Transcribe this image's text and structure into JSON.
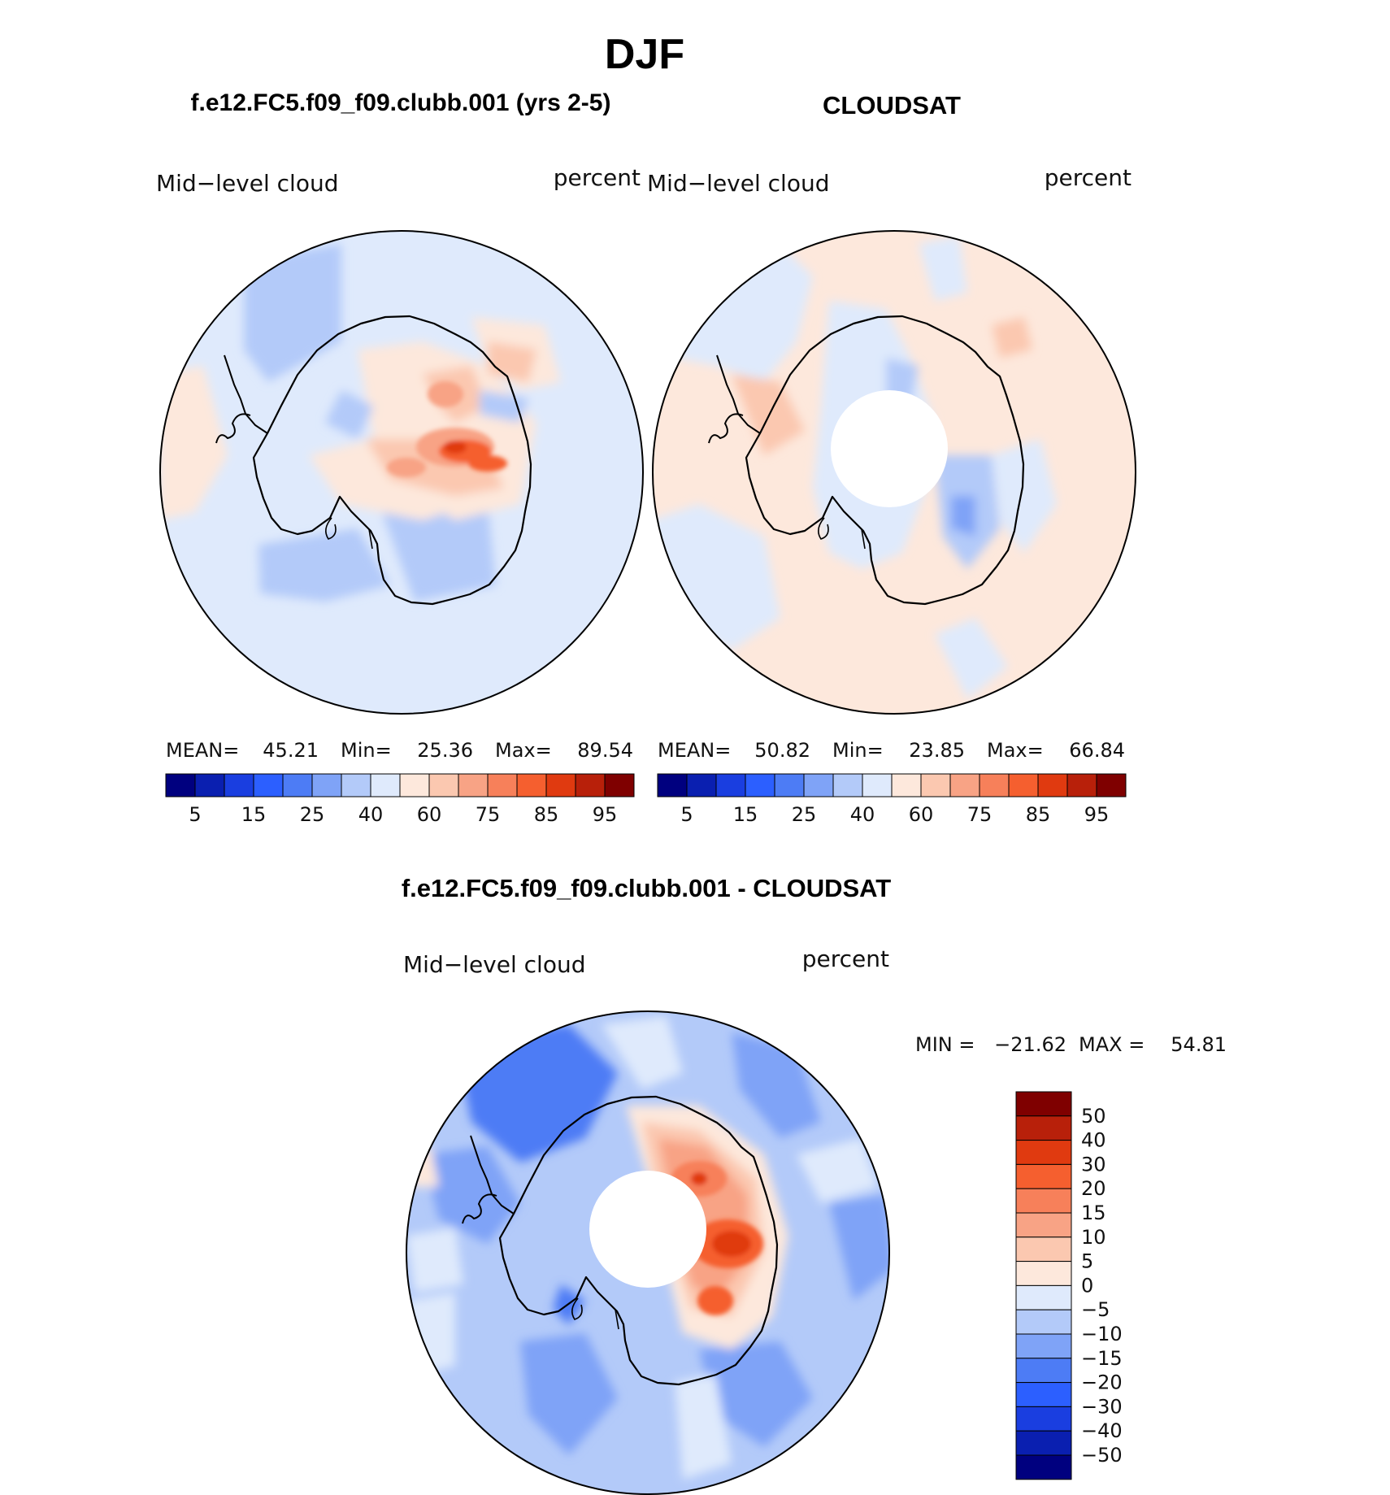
{
  "figure": {
    "season": "DJF",
    "panels": [
      {
        "id": "model",
        "case_title": "f.e12.FC5.f09_f09.clubb.001 (yrs 2-5)",
        "variable": "Mid−level cloud",
        "units": "percent",
        "stats": {
          "mean_label": "MEAN=",
          "mean": "45.21",
          "min_label": "Min=",
          "min": "25.36",
          "max_label": "Max=",
          "max": "89.54"
        },
        "field": {
          "background": "light-blue",
          "south_pole_missing": false
        }
      },
      {
        "id": "obs",
        "case_title": "CLOUDSAT",
        "variable": "Mid−level cloud",
        "units": "percent",
        "stats": {
          "mean_label": "MEAN=",
          "mean": "50.82",
          "min_label": "Min=",
          "min": "23.85",
          "max_label": "Max=",
          "max": "66.84"
        },
        "field": {
          "background": "light-orange",
          "south_pole_missing": true
        }
      }
    ],
    "abs_colorbar": {
      "colors": [
        "#00007f",
        "#0a1fb0",
        "#1a3ee0",
        "#2c5fff",
        "#4d7cf5",
        "#7fa3f7",
        "#b3caf9",
        "#dfeafc",
        "#fde8dc",
        "#fbc8b0",
        "#f8a385",
        "#f7805a",
        "#f55f2f",
        "#e03a10",
        "#b8200a",
        "#7f0000"
      ],
      "labels": [
        "5",
        "15",
        "25",
        "40",
        "60",
        "75",
        "85",
        "95"
      ]
    },
    "diff": {
      "case_title": "f.e12.FC5.f09_f09.clubb.001 - CLOUDSAT",
      "variable": "Mid−level cloud",
      "units": "percent",
      "min_label": "MIN =",
      "min": "−21.62",
      "max_label": "MAX =",
      "max": "54.81",
      "colorbar": {
        "colors_top_to_bottom": [
          "#7f0000",
          "#b8200a",
          "#e03a10",
          "#f55f2f",
          "#f7805a",
          "#f8a385",
          "#fbc8b0",
          "#fde8dc",
          "#dfeafc",
          "#b3caf9",
          "#7fa3f7",
          "#4d7cf5",
          "#2c5fff",
          "#1a3ee0",
          "#0a1fb0",
          "#00007f"
        ],
        "labels_top_to_bottom": [
          "50",
          "40",
          "30",
          "20",
          "15",
          "10",
          "5",
          "0",
          "−5",
          "−10",
          "−15",
          "−20",
          "−30",
          "−40",
          "−50"
        ]
      }
    }
  }
}
